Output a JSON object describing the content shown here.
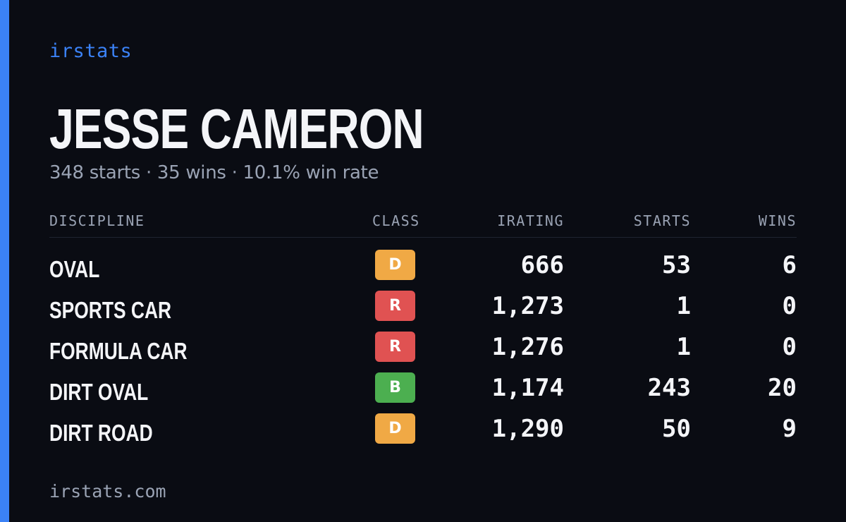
{
  "colors": {
    "background": "#0a0c13",
    "accent": "#3b82f6",
    "text_primary": "#f4f5f8",
    "text_secondary": "#9aa3b4",
    "header_text": "#9aa3b4",
    "class_D": "#f0a945",
    "class_R": "#e05252",
    "class_B": "#4caf50"
  },
  "brand": "irstats",
  "driver": {
    "name": "JESSE CAMERON",
    "summary": "348 starts · 35 wins · 10.1% win rate"
  },
  "table": {
    "headers": {
      "discipline": "DISCIPLINE",
      "class": "CLASS",
      "irating": "IRATING",
      "starts": "STARTS",
      "wins": "WINS"
    },
    "rows": [
      {
        "discipline": "OVAL",
        "class": "D",
        "irating": "666",
        "starts": "53",
        "wins": "6"
      },
      {
        "discipline": "SPORTS CAR",
        "class": "R",
        "irating": "1,273",
        "starts": "1",
        "wins": "0"
      },
      {
        "discipline": "FORMULA CAR",
        "class": "R",
        "irating": "1,276",
        "starts": "1",
        "wins": "0"
      },
      {
        "discipline": "DIRT OVAL",
        "class": "B",
        "irating": "1,174",
        "starts": "243",
        "wins": "20"
      },
      {
        "discipline": "DIRT ROAD",
        "class": "D",
        "irating": "1,290",
        "starts": "50",
        "wins": "9"
      }
    ]
  },
  "footer": "irstats.com"
}
